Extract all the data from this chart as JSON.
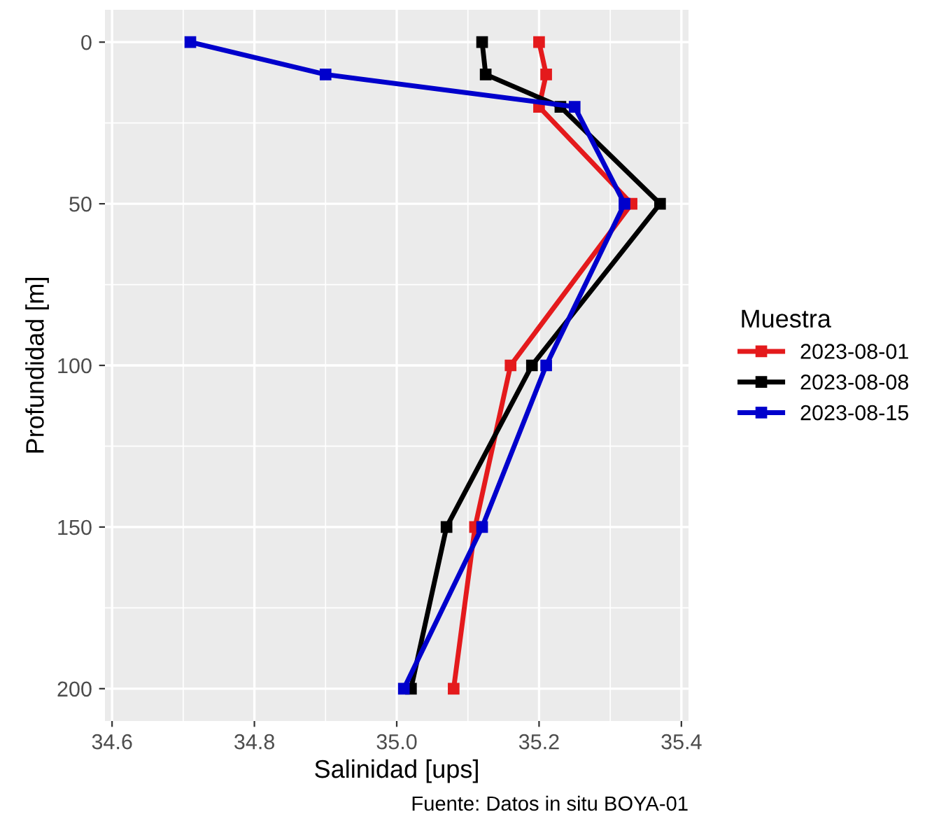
{
  "chart_data": {
    "type": "line",
    "xlabel": "Salinidad [ups]",
    "ylabel": "Profundidad [m]",
    "legend_title": "Muestra",
    "annotations": [
      "Fuente: Datos in situ BOYA-01"
    ],
    "series": [
      {
        "name": "2023-08-01",
        "color": "#e41a1c",
        "x": [
          35.2,
          35.21,
          35.2,
          35.33,
          35.16,
          35.11,
          35.08
        ],
        "values": [
          0,
          10,
          20,
          50,
          100,
          150,
          200
        ]
      },
      {
        "name": "2023-08-08",
        "color": "#000000",
        "x": [
          35.12,
          35.125,
          35.23,
          35.37,
          35.19,
          35.07,
          35.02
        ],
        "values": [
          0,
          10,
          20,
          50,
          100,
          150,
          200
        ]
      },
      {
        "name": "2023-08-15",
        "color": "#0000cc",
        "x": [
          34.71,
          34.9,
          35.25,
          35.32,
          35.21,
          35.12,
          35.01
        ],
        "values": [
          0,
          10,
          20,
          50,
          100,
          150,
          200
        ]
      }
    ],
    "xlim": [
      34.59,
      35.41
    ],
    "xticks": [
      {
        "value": 34.6,
        "label": "34.6"
      },
      {
        "value": 34.8,
        "label": "34.8"
      },
      {
        "value": 35.0,
        "label": "35.0"
      },
      {
        "value": 35.2,
        "label": "35.2"
      },
      {
        "value": 35.4,
        "label": "35.4"
      }
    ],
    "ylim": [
      210,
      -10
    ],
    "yticks": [
      0,
      50,
      100,
      150,
      200
    ],
    "grid": true,
    "legend": "right",
    "marker": "square",
    "line_style": "solid"
  }
}
